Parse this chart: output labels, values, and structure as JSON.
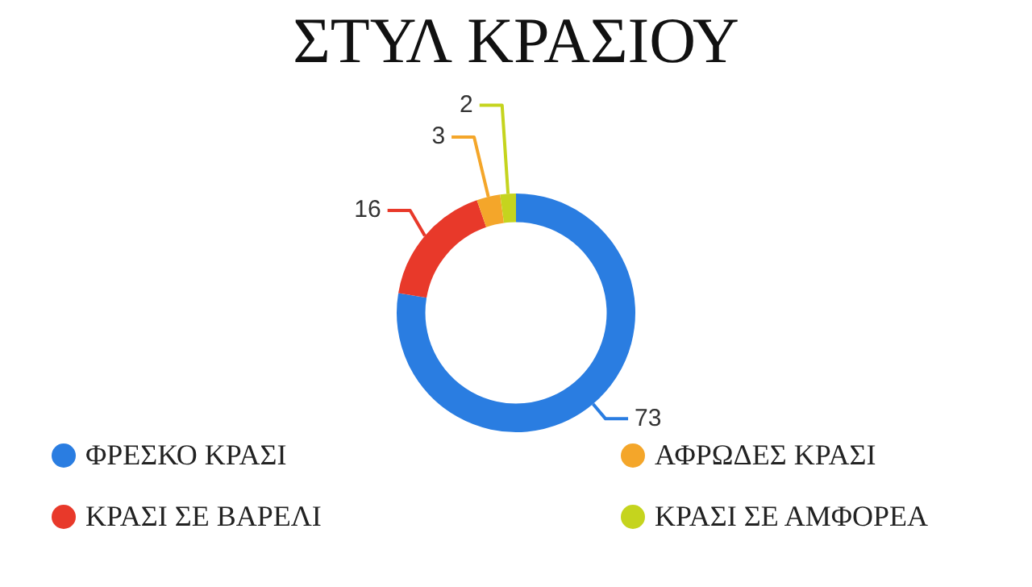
{
  "chart_data": {
    "type": "donut",
    "title": "ΣΤΥΛ ΚΡΑΣΙΟΥ",
    "categories": [
      "ΦΡΕΣΚΟ ΚΡΑΣΙ",
      "ΚΡΑΣΙ ΣΕ ΒΑΡΕΛΙ",
      "ΑΦΡΩΔΕΣ ΚΡΑΣΙ",
      "ΚΡΑΣΙ ΣΕ ΑΜΦΟΡΕΑ"
    ],
    "values": [
      73,
      16,
      3,
      2
    ],
    "colors": [
      "#2a7de1",
      "#e8392a",
      "#f4a62a",
      "#c5d41e"
    ],
    "data_labels": true,
    "legend": "bottom"
  }
}
